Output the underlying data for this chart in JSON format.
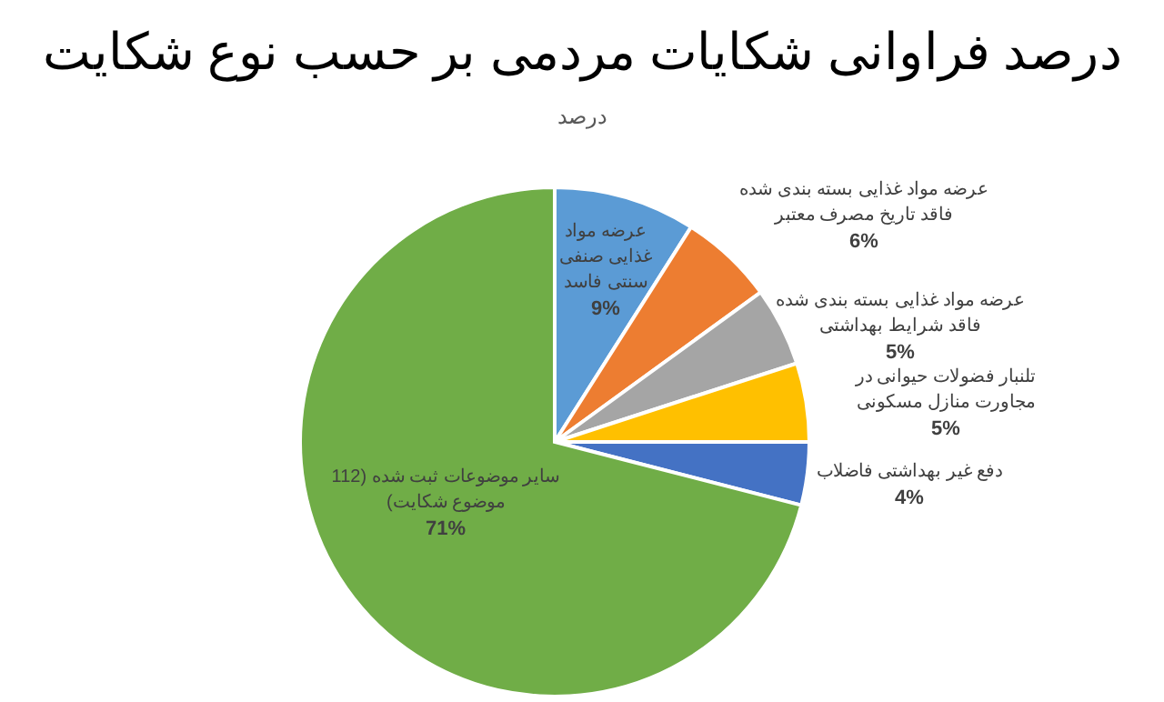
{
  "chart_data": {
    "type": "pie",
    "title": "درصد فراوانی شکایات مردمی بر حسب نوع شکایت",
    "subtitle": "درصد",
    "categories": [
      "عرضه مواد غذایی صنفی سنتی فاسد",
      "عرضه مواد غذایی بسته بندی شده فاقد تاریخ مصرف معتبر",
      "عرضه مواد غذایی بسته بندی شده فاقد شرایط بهداشتی",
      "تلنبار فضولات حیوانی در مجاورت منازل مسکونی",
      "دفع غیر بهداشتی فاضلاب",
      "سایر موضوعات ثبت شده (112 موضوع شکایت)"
    ],
    "values": [
      9,
      6,
      5,
      5,
      4,
      71
    ],
    "value_labels": [
      "9%",
      "6%",
      "5%",
      "5%",
      "4%",
      "71%"
    ],
    "colors": [
      "#5b9bd5",
      "#ed7d31",
      "#a5a5a5",
      "#ffc000",
      "#4472c4",
      "#70ad47"
    ]
  }
}
